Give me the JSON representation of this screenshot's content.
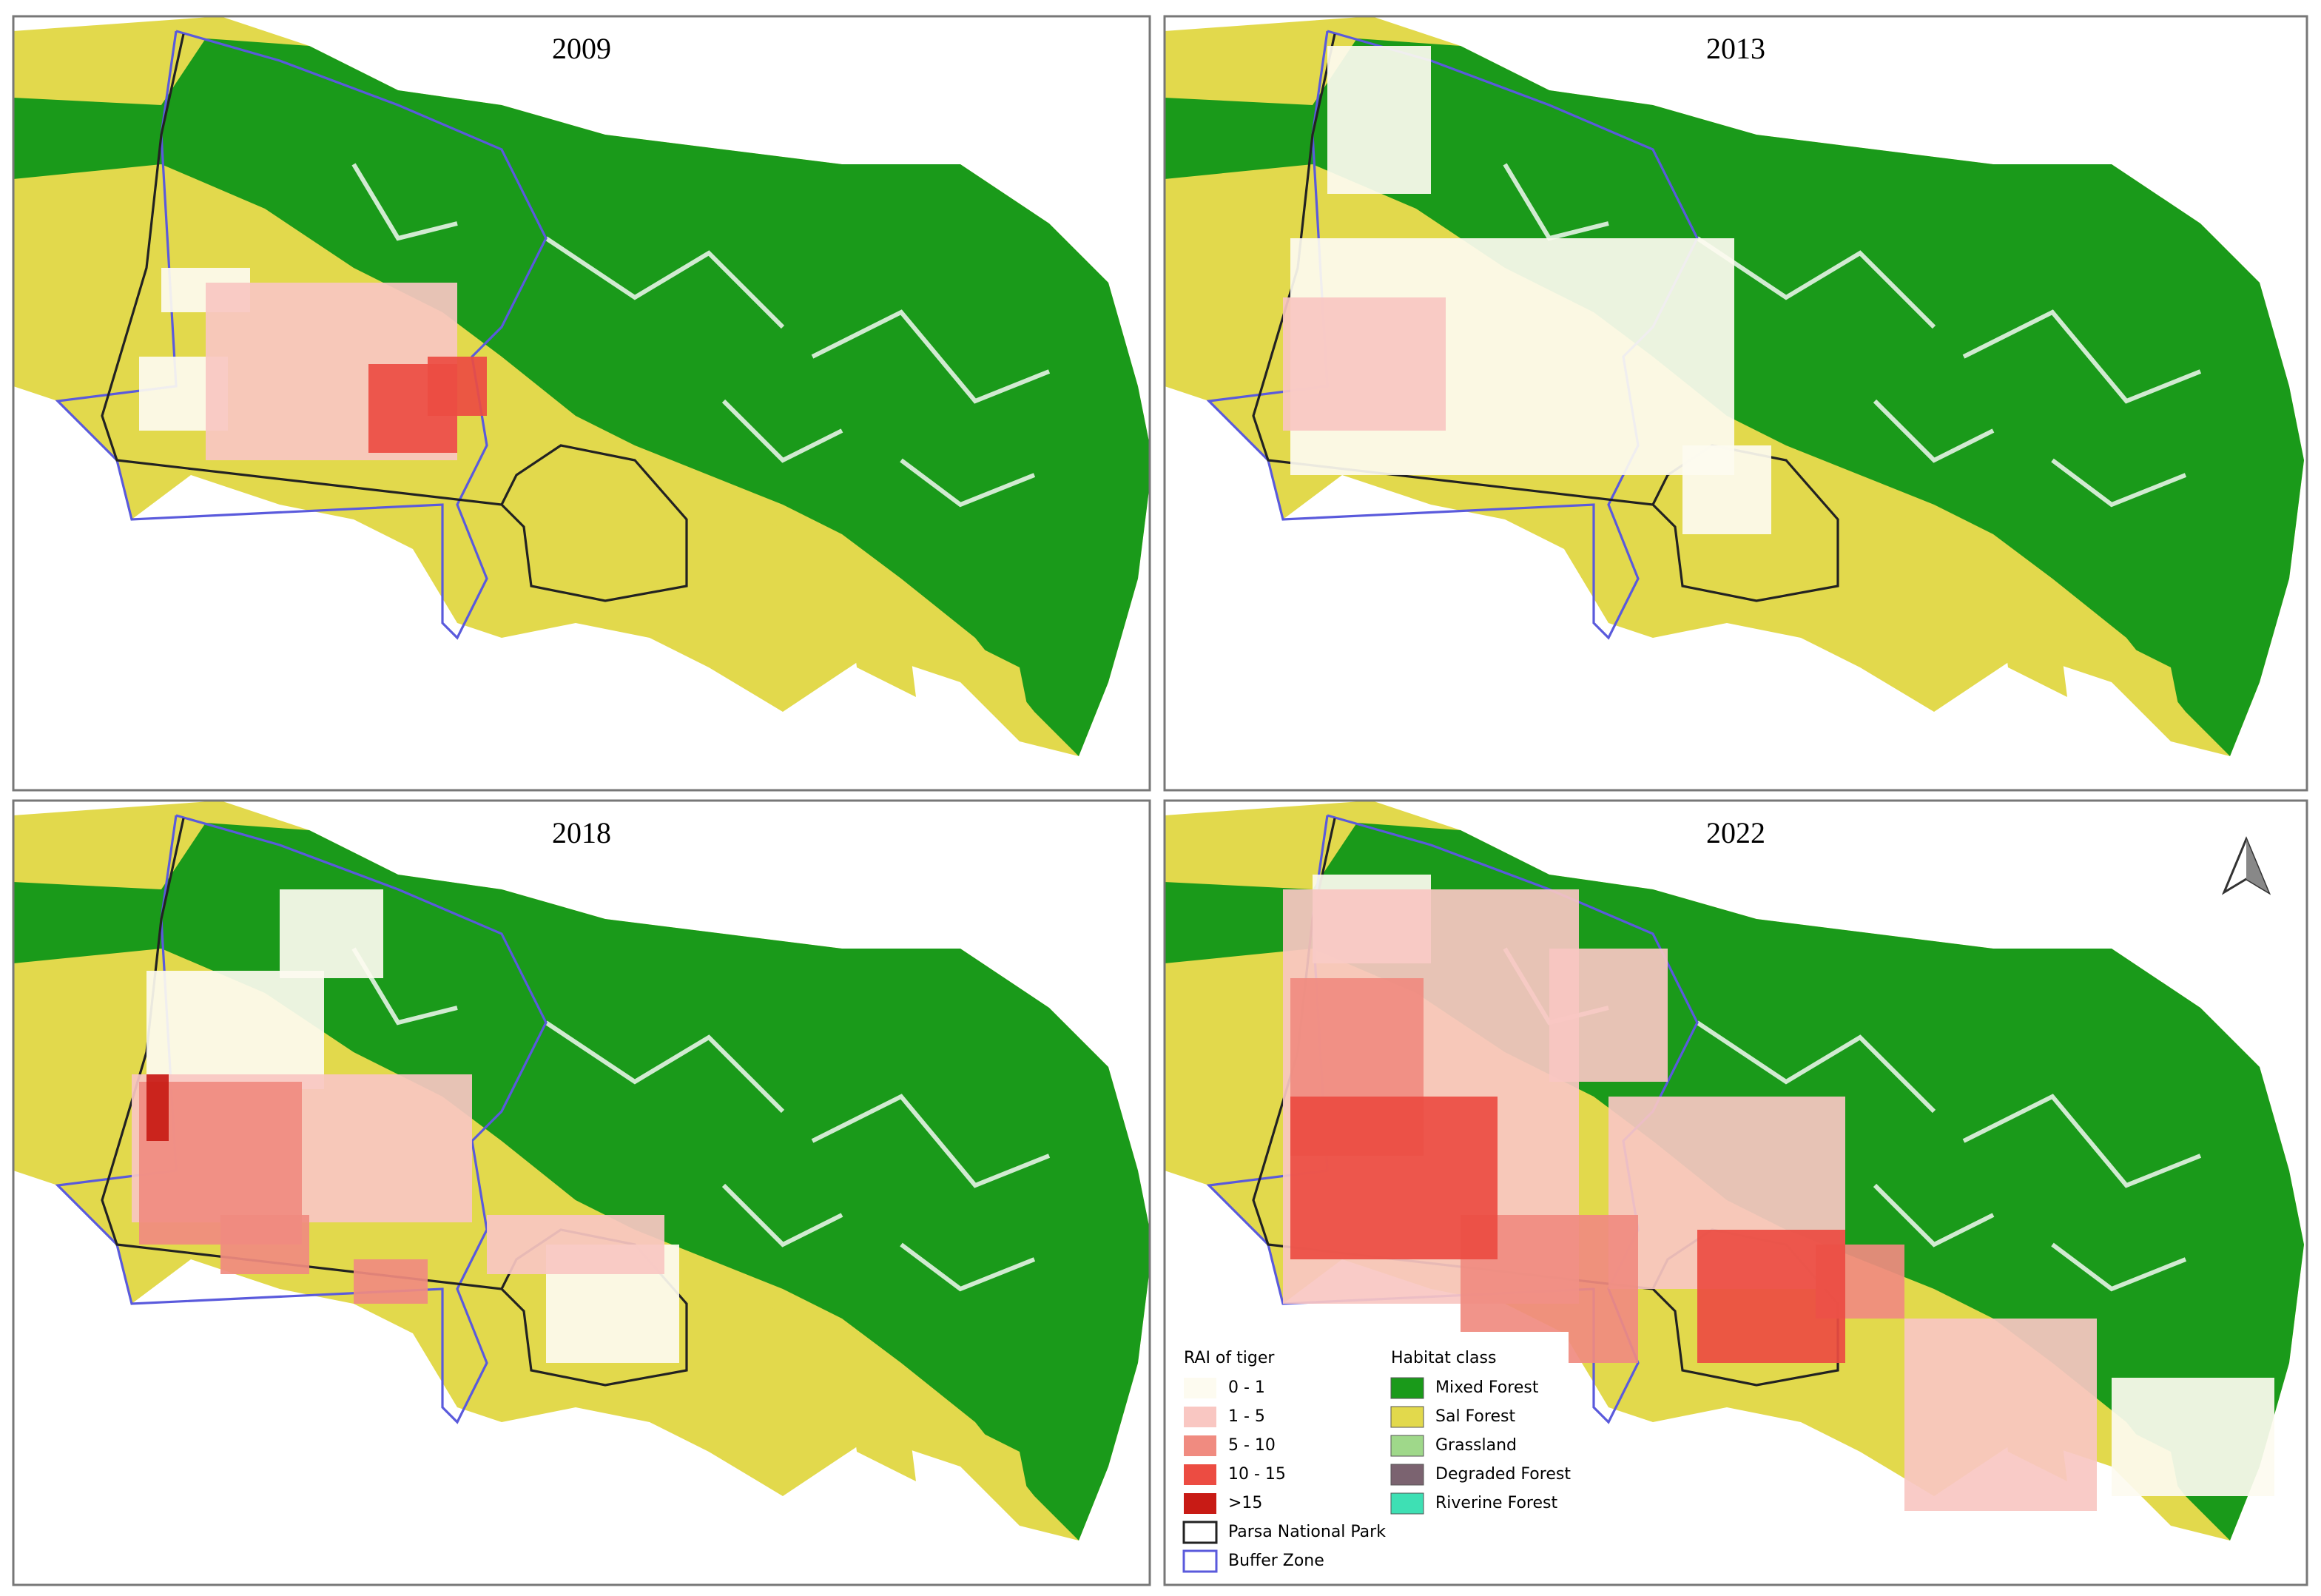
{
  "panels": [
    {
      "title": "2009"
    },
    {
      "title": "2013"
    },
    {
      "title": "2018"
    },
    {
      "title": "2022"
    }
  ],
  "legend": {
    "rai": {
      "title": "RAI of tiger",
      "classes": [
        {
          "label": "0 - 1",
          "color": "#fdfbf0"
        },
        {
          "label": "1 - 5",
          "color": "#f9c7c2"
        },
        {
          "label": "5 - 10",
          "color": "#f08b80"
        },
        {
          "label": "10 - 15",
          "color": "#ec4c42"
        },
        {
          "label": ">15",
          "color": "#c81b15"
        }
      ]
    },
    "boundaries": [
      {
        "label": "Parsa National Park",
        "color": "#222222"
      },
      {
        "label": "Buffer Zone",
        "color": "#5a5adc"
      }
    ],
    "habitat": {
      "title": "Habitat class",
      "classes": [
        {
          "label": "Mixed Forest",
          "color": "#1a9a1a"
        },
        {
          "label": "Sal Forest",
          "color": "#e2d94c"
        },
        {
          "label": "Grassland",
          "color": "#9fd88a"
        },
        {
          "label": "Degraded Forest",
          "color": "#7b6370"
        },
        {
          "label": "Riverine Forest",
          "color": "#3ee0b4"
        }
      ]
    }
  }
}
